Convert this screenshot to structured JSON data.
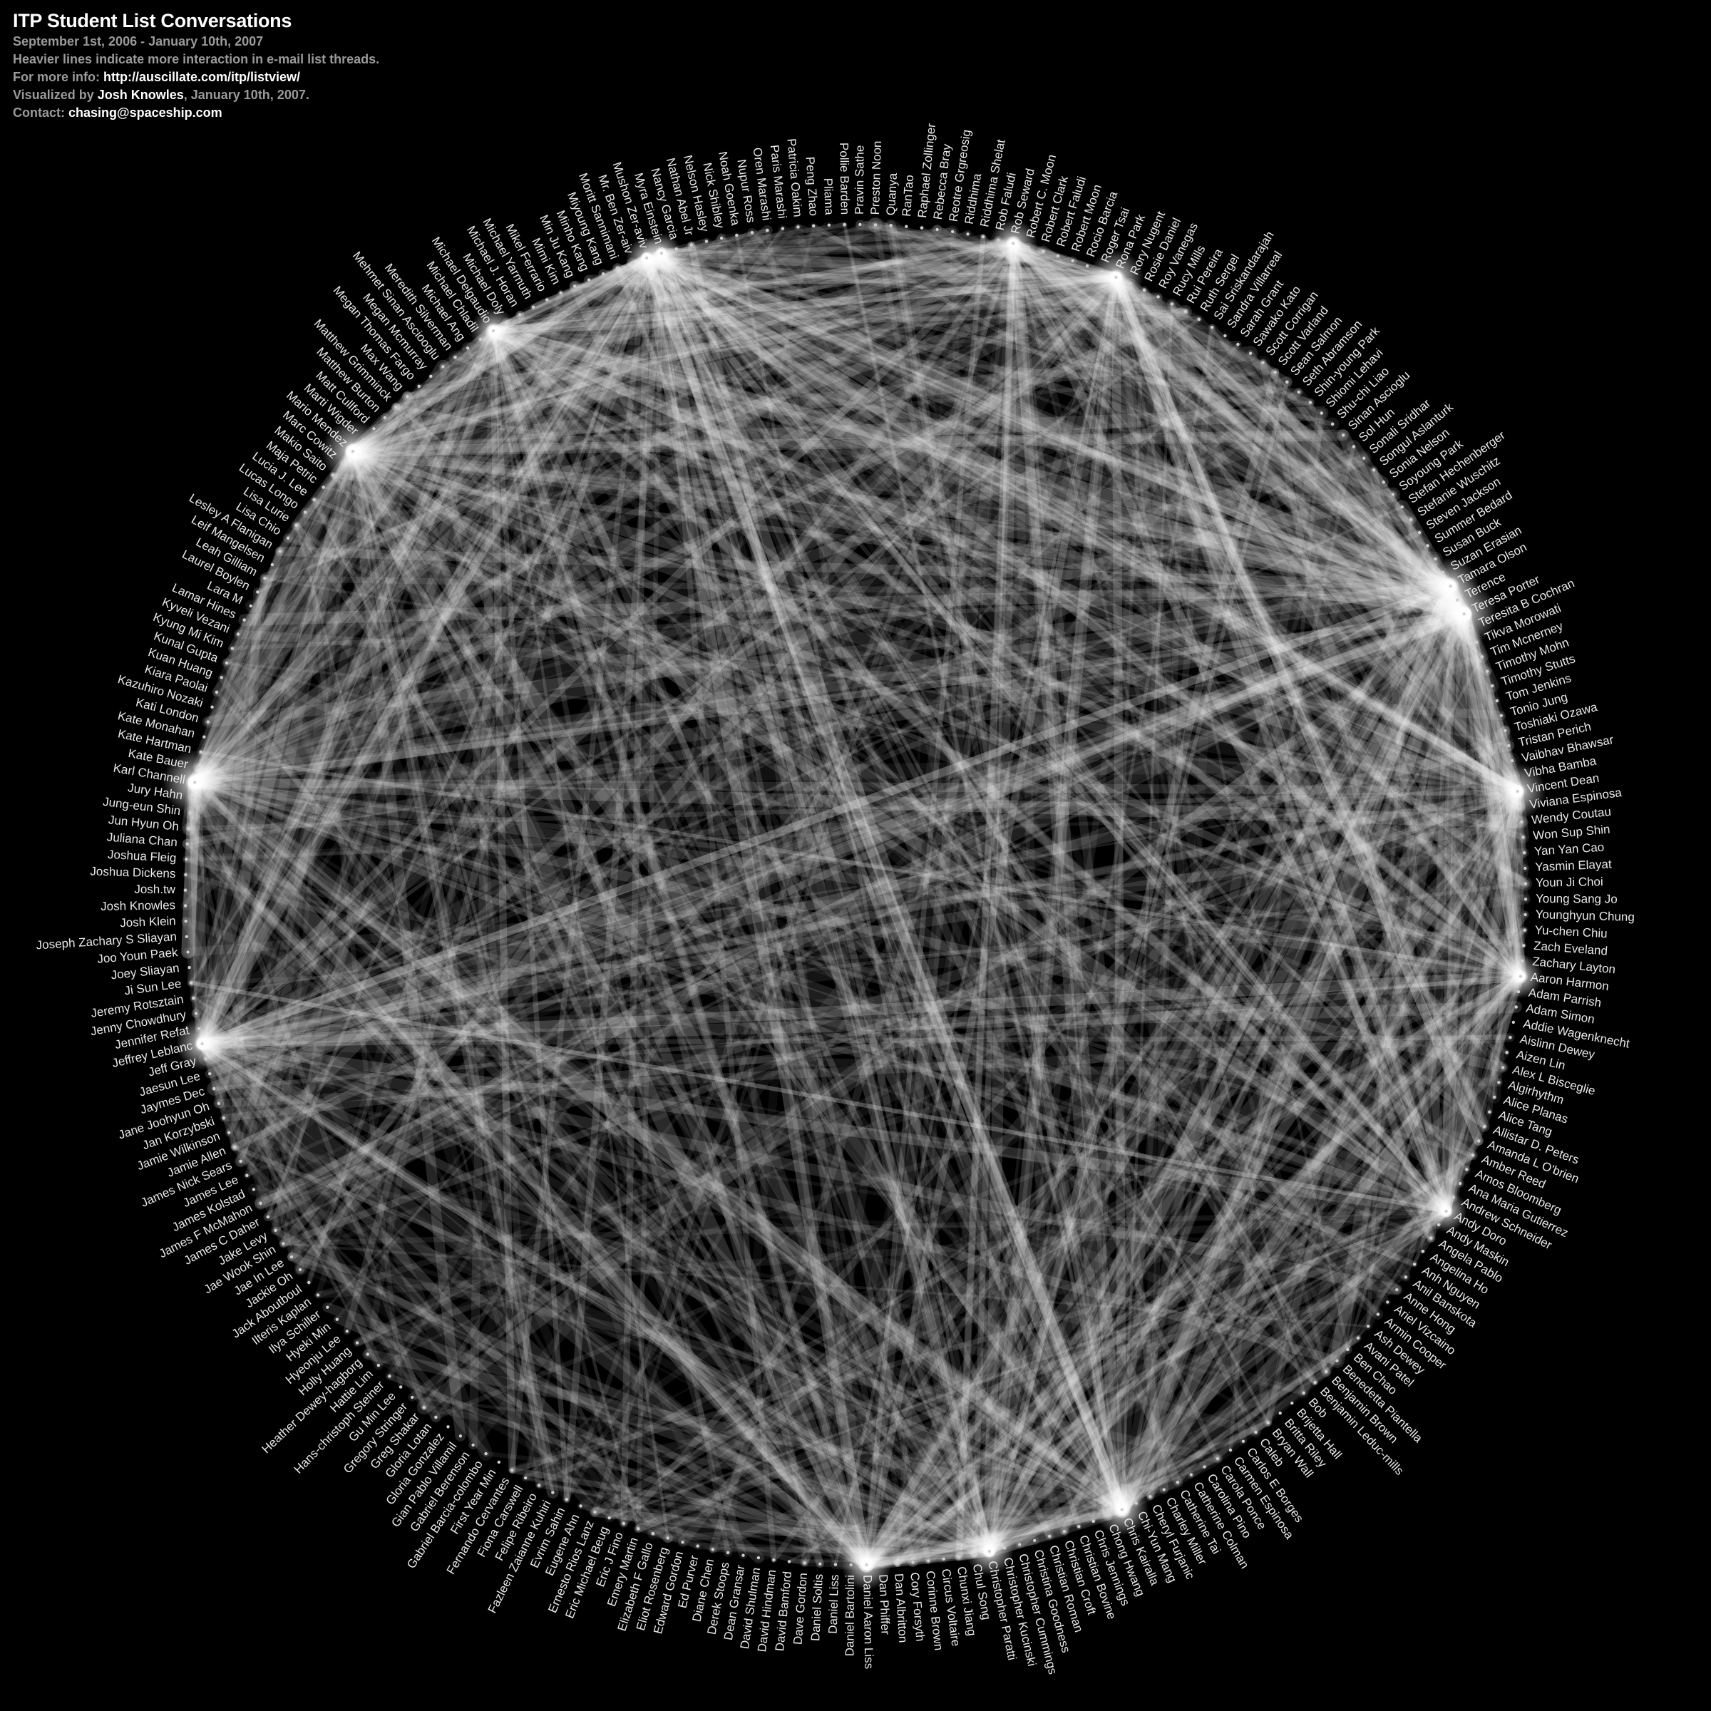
{
  "header": {
    "title": "ITP Student List Conversations",
    "date_range": "September 1st, 2006 - January 10th, 2007",
    "description": "Heavier lines indicate more interaction in e-mail list threads.",
    "info_prefix": "For more info: ",
    "info_url": "http://auscillate.com/itp/listview/",
    "credit_prefix": "Visualized by ",
    "credit_name": "Josh Knowles",
    "credit_suffix": ", January 10th, 2007.",
    "contact_prefix": "Contact: ",
    "contact_email": "chasing@spaceship.com"
  },
  "colors": {
    "background": "#000000",
    "text": "#ffffff",
    "subtext": "#9a9a9a",
    "edge": "#ffffff"
  },
  "names": [
    "Aaron Harmon",
    "Adam Parrish",
    "Adam Simon",
    "Addie Wagenknecht",
    "Aislinn Dewey",
    "Aizen Lin",
    "Alex L Bisceglie",
    "Algirhythm",
    "Alice Planas",
    "Alice Tang",
    "Allistar D. Peters",
    "Amanda L O'brien",
    "Amber Reed",
    "Amos Bloomberg",
    "Ana Maria Gutierrez",
    "Andrew Schneider",
    "Andy Doro",
    "Andy Maskin",
    "Angela Pablo",
    "Angelina Ho",
    "Anh Nguyen",
    "Anil Banskota",
    "Anne Hong",
    "Ariel Vizcaino",
    "Armin Cooper",
    "Ash Dewey",
    "Avani Patel",
    "Ben Chao",
    "Benedetta Piantella",
    "Benjamin Brown",
    "Benjamin Leduc-mills",
    "Bob",
    "Brijetta Hall",
    "Britta Riley",
    "Bryan Wall",
    "Caleb",
    "Carlos E Borges",
    "Carmen Espinosa",
    "Carola Ponce",
    "Carolina Pino",
    "Catherine Colman",
    "Catherine Tai",
    "Charley Miller",
    "Cheryl Furjanic",
    "Chi-Yun Mang",
    "Chris Kairalla",
    "Chong Hwang",
    "Chris Jennings",
    "Christian Bovine",
    "Christian Croft",
    "Christian Roman",
    "Christina Goodness",
    "Christopher Cummings",
    "Christopher Kucinski",
    "Christopher Paratti",
    "Chul Song",
    "Chunxi Jiang",
    "Circus Voltaire",
    "Corinne Brown",
    "Cory Forsyth",
    "Dan Albritton",
    "Dan Phiffer",
    "Daniel Aaron Liss",
    "Daniel Bartolini",
    "Daniel Liss",
    "Daniel Soltis",
    "Dave Gordon",
    "David Bamford",
    "David Hindman",
    "David Shulman",
    "Dean Gransar",
    "Derek Stoops",
    "Diane Chen",
    "Ed Purver",
    "Edward Gordon",
    "Eliot Rosenberg",
    "Elizabeth F Gallo",
    "Emery Martin",
    "Eric J Fino",
    "Eric Michael Beug",
    "Ernesto Rios Lanz",
    "Eugene Ahn",
    "Evrim Sahin",
    "Fazleen Zaianne Kuhiri",
    "Felipe Ribeiro",
    "Fiona Carswell",
    "Fernando Cervantes",
    "First Year Min",
    "Gabriel Barcia-colombo",
    "Gabriel Berenson",
    "Gian Pablo Villamil",
    "Gloria Gonzalez",
    "Gloria Lotan",
    "Greg Shakar",
    "Gregory Stringer",
    "Gu Min Lee",
    "Hans-christoph Steiner",
    "Hattie Lim",
    "Heather Dewey-hagborg",
    "Holly Huang",
    "Hyeonju Lee",
    "Hyeki Min",
    "Ilya Schiller",
    "Ilteris Kaplan",
    "Jack Aboutboul",
    "Jackie Oh",
    "Jae In Lee",
    "Jae Wook Shin",
    "Jake Levy",
    "James C Daher",
    "James F McMahon",
    "James Kolstad",
    "James Lee",
    "James Nick Sears",
    "Jamie Allen",
    "Jamie Wilkinson",
    "Jan Korzybski",
    "Jane Joohyun Oh",
    "Jaymes Dec",
    "Jaesun Lee",
    "Jeff Gray",
    "Jeffrey Leblanc",
    "Jennifer Refat",
    "Jenny Chowdhury",
    "Jeremy Rotsztain",
    "Ji Sun Lee",
    "Joey Sliayan",
    "Joo Youn Paek",
    "Joseph Zachary S Sliayan",
    "Josh Klein",
    "Josh Knowles",
    "Josh.tw",
    "Joshua Dickens",
    "Joshua Fleig",
    "Juliana Chan",
    "Jun Hyun Oh",
    "Jung-eun Shin",
    "Jury Hahn",
    "Karl Channell",
    "Kate Bauer",
    "Kate Hartman",
    "Kate Monahan",
    "Kati London",
    "Kazuhiro Nozaki",
    "Kiara Paolai",
    "Kuan Huang",
    "Kunal Gupta",
    "Kyung Mi Kim",
    "Kyveli Vezani",
    "Lamar Hines",
    "Lara M",
    "Laurel Boylen",
    "Leah Gilliam",
    "Leif Mangelsen",
    "Lesley A Flanigan",
    "Lisa Chio",
    "Lisa Lurie",
    "Lucas Longo",
    "Lucia J. Lee",
    "Maja Petric",
    "Makio Saito",
    "Marc Cowitz",
    "Mario Mendez",
    "Marti Wigder",
    "Matt Cullford",
    "Matthew Burton",
    "Matthew Grimminck",
    "Max Wang",
    "Megan Thomas Fargo",
    "Megan Mcmurray",
    "Mehmet Sinan Asciooglu",
    "Meredith Silverman",
    "Michael Ang",
    "Michael Chladil",
    "Michael Delgaudio",
    "Michael Doly",
    "Michael J. Horan",
    "Michael Yarmuth",
    "Mikel Ferrario",
    "Mimi Kim",
    "Min Ju Kang",
    "Minho Kang",
    "Miyoung Kang",
    "Moritt Sannimani",
    "Mr. Ben Zer-aiv",
    "Mushon Zer-aviv",
    "Myra Einstein",
    "Nancy Garcia",
    "Nathan Abel Jr",
    "Nelson Hasley",
    "Nick Shibley",
    "Noah Goenka",
    "Nupur Ross",
    "Oren Marashi",
    "Paris Marashi",
    "Patricia Oakim",
    "Peng Zhao",
    "Pliama",
    "Pollie Barden",
    "Pravin Sathe",
    "Preston Noon",
    "Quanya",
    "RanTao",
    "Raphael Zollinger",
    "Rebecca Bray",
    "Reotre Grgreosig",
    "Riddhima",
    "Riddhima Shelat",
    "Rob Faludi",
    "Rob Seward",
    "Robert C. Moon",
    "Robert Clark",
    "Robert Faludi",
    "Robert Moon",
    "Rocio Barcia",
    "Roger Tsai",
    "Rona Park",
    "Rory Nugent",
    "Rosie Daniel",
    "Roy Vanegas",
    "Rucy Mills",
    "Rui Pereira",
    "Ruth Sergel",
    "Sai Sriskandarajah",
    "Sandra Villarreal",
    "Sarah Grant",
    "Sawako Kato",
    "Scott Corrigan",
    "Scott Varland",
    "Sean Salmon",
    "Seth Abramson",
    "Shin-young Park",
    "Shiomi Lehavi",
    "Shu-chi Liao",
    "Sinan Ascioglu",
    "Sol Hun",
    "Sonali Sridhar",
    "Songul Aslanturk",
    "Sonia Nelson",
    "Soyoung Park",
    "Stefan Hechenberger",
    "Stefanie Wuschitz",
    "Steven Jackson",
    "Summer Bedard",
    "Susan Buck",
    "Suzan Erasian",
    "Tamara Olson",
    "Terence",
    "Teresa Porter",
    "Teresita B Cochran",
    "Tikva Morowati",
    "Tim Mcnerney",
    "Timothy Mohn",
    "Timothy Stutts",
    "Tom Jenkins",
    "Tonio Jung",
    "Toshiaki Ozawa",
    "Tristan Perich",
    "Vaibhav Bhawsar",
    "Vibha Bamba",
    "Vincent Dean",
    "Viviana Espinosa",
    "Wendy Coutau",
    "Won Sup Shin",
    "Yan Yan Cao",
    "Yasmin Elayat",
    "Youn Ji Choi",
    "Young Sang Jo",
    "Younghyun Chung",
    "Yu-chen Chiu",
    "Zach Eveland",
    "Zachary Layton"
  ],
  "hubs": [
    {
      "index": 248,
      "weight": 1.0
    },
    {
      "index": 138,
      "weight": 1.0
    },
    {
      "index": 162,
      "weight": 0.95
    },
    {
      "index": 246,
      "weight": 0.8
    },
    {
      "index": 260,
      "weight": 0.8
    },
    {
      "index": 216,
      "weight": 0.75
    },
    {
      "index": 45,
      "weight": 0.7
    },
    {
      "index": 62,
      "weight": 0.65
    },
    {
      "index": 54,
      "weight": 0.6
    },
    {
      "index": 121,
      "weight": 0.7
    },
    {
      "index": 209,
      "weight": 0.6
    },
    {
      "index": 174,
      "weight": 0.55
    },
    {
      "index": 185,
      "weight": 0.45
    },
    {
      "index": 186,
      "weight": 0.4
    },
    {
      "index": 16,
      "weight": 0.45
    },
    {
      "index": 0,
      "weight": 0.5
    }
  ]
}
